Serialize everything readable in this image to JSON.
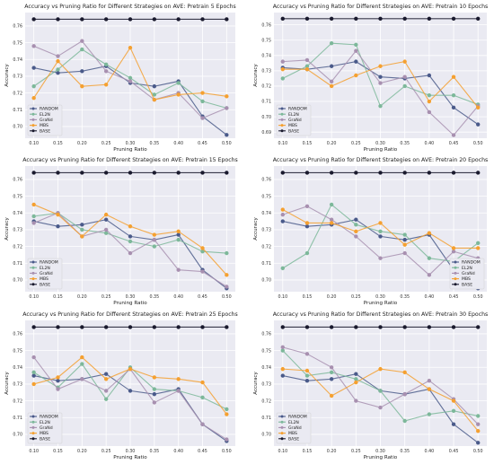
{
  "figure": {
    "background": "#ffffff",
    "panel_bg": "#eaeaf2",
    "grid_color": "#ffffff"
  },
  "chart_data": [
    {
      "type": "line",
      "title": "Accuracy vs Pruning Ratio for Different Strategies on AVE: Pretrain 5 Epochs",
      "xlabel": "Pruning Ratio",
      "ylabel": "Accuracy",
      "x": [
        0.1,
        0.15,
        0.2,
        0.25,
        0.3,
        0.35,
        0.4,
        0.45,
        0.5
      ],
      "xticks": [
        "0.10",
        "0.15",
        "0.20",
        "0.25",
        "0.30",
        "0.35",
        "0.40",
        "0.45",
        "0.50"
      ],
      "ylim": [
        0.693,
        0.768
      ],
      "yticks": [
        0.7,
        0.71,
        0.72,
        0.73,
        0.74,
        0.75,
        0.76
      ],
      "grid": true,
      "legend": "bottom-left",
      "series": [
        {
          "name": "RANDOM",
          "color": "#4a5a8a",
          "values": [
            0.735,
            0.732,
            0.733,
            0.736,
            0.726,
            0.724,
            0.727,
            0.706,
            0.695
          ]
        },
        {
          "name": "EL2N",
          "color": "#7db89a",
          "values": [
            0.724,
            0.734,
            0.746,
            0.737,
            0.729,
            0.719,
            0.726,
            0.715,
            0.711
          ]
        },
        {
          "name": "GraNd",
          "color": "#a890b0",
          "values": [
            0.748,
            0.742,
            0.751,
            0.733,
            0.727,
            0.716,
            0.72,
            0.705,
            0.711
          ]
        },
        {
          "name": "MBS",
          "color": "#f5a030",
          "values": [
            0.717,
            0.739,
            0.724,
            0.725,
            0.747,
            0.716,
            0.719,
            0.72,
            0.718
          ]
        },
        {
          "name": "BASE",
          "color": "#1a1a2e",
          "values": [
            0.764,
            0.764,
            0.764,
            0.764,
            0.764,
            0.764,
            0.764,
            0.764,
            0.764
          ]
        }
      ]
    },
    {
      "type": "line",
      "title": "Accuracy vs Pruning Ratio for Different Strategies on AVE: Pretrain 10 Epochs",
      "xlabel": "Pruning Ratio",
      "ylabel": "Accuracy",
      "x": [
        0.1,
        0.15,
        0.2,
        0.25,
        0.3,
        0.35,
        0.4,
        0.45,
        0.5
      ],
      "xticks": [
        "0.10",
        "0.15",
        "0.20",
        "0.25",
        "0.30",
        "0.35",
        "0.40",
        "0.45",
        "0.50"
      ],
      "ylim": [
        0.686,
        0.768
      ],
      "yticks": [
        0.69,
        0.7,
        0.71,
        0.72,
        0.73,
        0.74,
        0.75,
        0.76
      ],
      "grid": true,
      "legend": "bottom-left",
      "series": [
        {
          "name": "RANDOM",
          "color": "#4a5a8a",
          "values": [
            0.732,
            0.731,
            0.733,
            0.736,
            0.726,
            0.725,
            0.727,
            0.706,
            0.695
          ]
        },
        {
          "name": "EL2N",
          "color": "#7db89a",
          "values": [
            0.725,
            0.733,
            0.748,
            0.747,
            0.707,
            0.72,
            0.714,
            0.714,
            0.708
          ]
        },
        {
          "name": "GraNd",
          "color": "#a890b0",
          "values": [
            0.736,
            0.737,
            0.723,
            0.743,
            0.722,
            0.726,
            0.703,
            0.688,
            0.707
          ]
        },
        {
          "name": "MBS",
          "color": "#f5a030",
          "values": [
            0.731,
            0.731,
            0.72,
            0.727,
            0.733,
            0.736,
            0.71,
            0.726,
            0.706
          ]
        },
        {
          "name": "BASE",
          "color": "#1a1a2e",
          "values": [
            0.764,
            0.764,
            0.764,
            0.764,
            0.764,
            0.764,
            0.764,
            0.764,
            0.764
          ]
        }
      ]
    },
    {
      "type": "line",
      "title": "Accuracy vs Pruning Ratio for Different Strategies on AVE: Pretrain 15 Epochs",
      "xlabel": "Pruning Ratio",
      "ylabel": "Accuracy",
      "x": [
        0.1,
        0.15,
        0.2,
        0.25,
        0.3,
        0.35,
        0.4,
        0.45,
        0.5
      ],
      "xticks": [
        "0.10",
        "0.15",
        "0.20",
        "0.25",
        "0.30",
        "0.35",
        "0.40",
        "0.45",
        "0.50"
      ],
      "ylim": [
        0.693,
        0.768
      ],
      "yticks": [
        0.7,
        0.71,
        0.72,
        0.73,
        0.74,
        0.75,
        0.76
      ],
      "grid": true,
      "legend": "bottom-left",
      "series": [
        {
          "name": "RANDOM",
          "color": "#4a5a8a",
          "values": [
            0.735,
            0.732,
            0.733,
            0.736,
            0.726,
            0.724,
            0.727,
            0.706,
            0.695
          ]
        },
        {
          "name": "EL2N",
          "color": "#7db89a",
          "values": [
            0.738,
            0.74,
            0.73,
            0.728,
            0.723,
            0.72,
            0.724,
            0.717,
            0.716
          ]
        },
        {
          "name": "GraNd",
          "color": "#a890b0",
          "values": [
            0.734,
            0.74,
            0.726,
            0.73,
            0.716,
            0.724,
            0.706,
            0.705,
            0.696
          ]
        },
        {
          "name": "MBS",
          "color": "#f5a030",
          "values": [
            0.745,
            0.739,
            0.726,
            0.739,
            0.732,
            0.727,
            0.729,
            0.719,
            0.703
          ]
        },
        {
          "name": "BASE",
          "color": "#1a1a2e",
          "values": [
            0.764,
            0.764,
            0.764,
            0.764,
            0.764,
            0.764,
            0.764,
            0.764,
            0.764
          ]
        }
      ]
    },
    {
      "type": "line",
      "title": "Accuracy vs Pruning Ratio for Different Strategies on AVE: Pretrain 20 Epochs",
      "xlabel": "Pruning Ratio",
      "ylabel": "Accuracy",
      "x": [
        0.1,
        0.15,
        0.2,
        0.25,
        0.3,
        0.35,
        0.4,
        0.45,
        0.5
      ],
      "xticks": [
        "0.10",
        "0.15",
        "0.20",
        "0.25",
        "0.30",
        "0.35",
        "0.40",
        "0.45",
        "0.50"
      ],
      "ylim": [
        0.693,
        0.768
      ],
      "yticks": [
        0.7,
        0.71,
        0.72,
        0.73,
        0.74,
        0.75,
        0.76
      ],
      "grid": true,
      "legend": "bottom-right",
      "series": [
        {
          "name": "RANDOM",
          "color": "#4a5a8a",
          "values": [
            0.735,
            0.732,
            0.733,
            0.736,
            0.726,
            0.724,
            0.727,
            0.706,
            0.695
          ]
        },
        {
          "name": "EL2N",
          "color": "#7db89a",
          "values": [
            0.707,
            0.716,
            0.745,
            0.733,
            0.729,
            0.727,
            0.713,
            0.711,
            0.722
          ]
        },
        {
          "name": "GraNd",
          "color": "#a890b0",
          "values": [
            0.739,
            0.744,
            0.736,
            0.726,
            0.713,
            0.716,
            0.703,
            0.717,
            0.713
          ]
        },
        {
          "name": "MBS",
          "color": "#f5a030",
          "values": [
            0.742,
            0.734,
            0.734,
            0.729,
            0.734,
            0.721,
            0.728,
            0.719,
            0.719
          ]
        },
        {
          "name": "BASE",
          "color": "#1a1a2e",
          "values": [
            0.764,
            0.764,
            0.764,
            0.764,
            0.764,
            0.764,
            0.764,
            0.764,
            0.764
          ]
        }
      ]
    },
    {
      "type": "line",
      "title": "Accuracy vs Pruning Ratio for Different Strategies on AVE: Pretrain 25 Epochs",
      "xlabel": "Pruning Ratio",
      "ylabel": "Accuracy",
      "x": [
        0.1,
        0.15,
        0.2,
        0.25,
        0.3,
        0.35,
        0.4,
        0.45,
        0.5
      ],
      "xticks": [
        "0.10",
        "0.15",
        "0.20",
        "0.25",
        "0.30",
        "0.35",
        "0.40",
        "0.45",
        "0.50"
      ],
      "ylim": [
        0.693,
        0.768
      ],
      "yticks": [
        0.7,
        0.71,
        0.72,
        0.73,
        0.74,
        0.75,
        0.76
      ],
      "grid": true,
      "legend": "bottom-left",
      "series": [
        {
          "name": "RANDOM",
          "color": "#4a5a8a",
          "values": [
            0.735,
            0.732,
            0.733,
            0.736,
            0.726,
            0.724,
            0.727,
            0.706,
            0.696
          ]
        },
        {
          "name": "EL2N",
          "color": "#7db89a",
          "values": [
            0.737,
            0.728,
            0.742,
            0.721,
            0.74,
            0.727,
            0.726,
            0.722,
            0.715
          ]
        },
        {
          "name": "GraNd",
          "color": "#a890b0",
          "values": [
            0.746,
            0.727,
            0.733,
            0.726,
            0.739,
            0.719,
            0.726,
            0.706,
            0.697
          ]
        },
        {
          "name": "MBS",
          "color": "#f5a030",
          "values": [
            0.73,
            0.734,
            0.746,
            0.733,
            0.739,
            0.734,
            0.733,
            0.731,
            0.712
          ]
        },
        {
          "name": "BASE",
          "color": "#1a1a2e",
          "values": [
            0.764,
            0.764,
            0.764,
            0.764,
            0.764,
            0.764,
            0.764,
            0.764,
            0.764
          ]
        }
      ]
    },
    {
      "type": "line",
      "title": "Accuracy vs Pruning Ratio for Different Strategies on AVE: Pretrain 30 Epochs",
      "xlabel": "Pruning Ratio",
      "ylabel": "Accuracy",
      "x": [
        0.1,
        0.15,
        0.2,
        0.25,
        0.3,
        0.35,
        0.4,
        0.45,
        0.5
      ],
      "xticks": [
        "0.10",
        "0.15",
        "0.20",
        "0.25",
        "0.30",
        "0.35",
        "0.40",
        "0.45",
        "0.50"
      ],
      "ylim": [
        0.693,
        0.768
      ],
      "yticks": [
        0.7,
        0.71,
        0.72,
        0.73,
        0.74,
        0.75,
        0.76
      ],
      "grid": true,
      "legend": "bottom-left",
      "series": [
        {
          "name": "RANDOM",
          "color": "#4a5a8a",
          "values": [
            0.735,
            0.732,
            0.733,
            0.736,
            0.726,
            0.724,
            0.727,
            0.706,
            0.695
          ]
        },
        {
          "name": "EL2N",
          "color": "#7db89a",
          "values": [
            0.75,
            0.735,
            0.737,
            0.733,
            0.726,
            0.708,
            0.712,
            0.714,
            0.711
          ]
        },
        {
          "name": "GraNd",
          "color": "#a890b0",
          "values": [
            0.752,
            0.748,
            0.74,
            0.72,
            0.716,
            0.724,
            0.732,
            0.721,
            0.706
          ]
        },
        {
          "name": "MBS",
          "color": "#f5a030",
          "values": [
            0.739,
            0.738,
            0.723,
            0.731,
            0.739,
            0.737,
            0.727,
            0.72,
            0.702
          ]
        },
        {
          "name": "BASE",
          "color": "#1a1a2e",
          "values": [
            0.764,
            0.764,
            0.764,
            0.764,
            0.764,
            0.764,
            0.764,
            0.764,
            0.764
          ]
        }
      ]
    }
  ]
}
